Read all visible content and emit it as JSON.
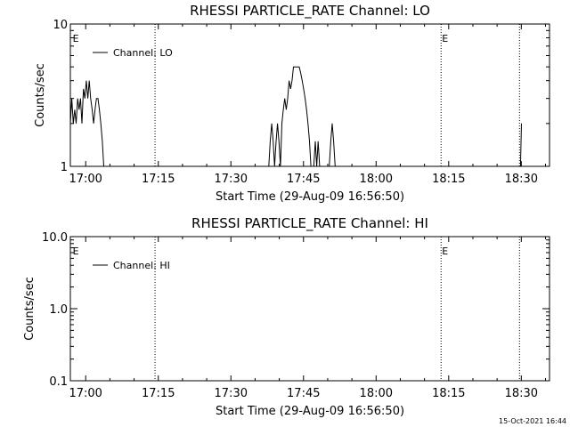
{
  "footer": {
    "timestamp": "15-Oct-2021 16:44"
  },
  "chart_data": [
    {
      "type": "line",
      "title": "RHESSI PARTICLE_RATE Channel: LO",
      "xlabel": "Start Time (29-Aug-09 16:56:50)",
      "ylabel": "Counts/sec",
      "xscale": "time (minutes after 16:56:50)",
      "xlim": [
        0,
        99
      ],
      "yscale": "log",
      "ylim": [
        1,
        10
      ],
      "x_ticks": [
        {
          "v": 3.17,
          "label": "17:00"
        },
        {
          "v": 18.17,
          "label": "17:15"
        },
        {
          "v": 33.17,
          "label": "17:30"
        },
        {
          "v": 48.17,
          "label": "17:45"
        },
        {
          "v": 63.17,
          "label": "18:00"
        },
        {
          "v": 78.17,
          "label": "18:15"
        },
        {
          "v": 93.17,
          "label": "18:30"
        }
      ],
      "y_ticks": [
        {
          "v": 1,
          "label": "1"
        },
        {
          "v": 10,
          "label": "10"
        }
      ],
      "legend": {
        "label": "Channel: LO",
        "placement": "top-left"
      },
      "markers": [
        {
          "x": 0.3,
          "label": "E"
        },
        {
          "x": 76.6,
          "label": "E"
        }
      ],
      "vlines": [
        17.5,
        76.6,
        92.8
      ],
      "series": [
        {
          "name": "Channel: LO",
          "x": [
            0.0,
            0.3,
            0.6,
            0.9,
            1.2,
            1.5,
            1.8,
            2.1,
            2.4,
            2.7,
            3.0,
            3.3,
            3.6,
            3.9,
            4.2,
            4.5,
            4.8,
            5.1,
            5.4,
            5.7,
            6.0,
            6.3,
            6.6,
            6.9,
            7.2,
            7.5,
            7.8,
            8.1,
            41.0,
            41.3,
            41.6,
            41.9,
            42.2,
            42.5,
            42.8,
            43.1,
            43.4,
            43.7,
            44.0,
            44.3,
            44.6,
            44.9,
            45.2,
            45.5,
            45.8,
            46.1,
            46.4,
            46.7,
            47.0,
            47.3,
            47.6,
            47.9,
            48.2,
            48.5,
            48.8,
            49.1,
            49.4,
            49.7,
            50.0,
            50.3,
            50.6,
            50.9,
            51.2,
            51.5,
            51.8,
            53.5,
            53.8,
            54.1,
            54.4,
            54.7,
            93.0,
            93.2
          ],
          "y": [
            2,
            3,
            2,
            2.5,
            2,
            3,
            2.5,
            3,
            2,
            3.5,
            3,
            4,
            3,
            4,
            3,
            2.5,
            2,
            2.5,
            3,
            3,
            2.5,
            2,
            1.5,
            1.0,
            1.0,
            1.0,
            1.0,
            1.0,
            1.0,
            1.5,
            2,
            1.5,
            1.0,
            1.5,
            2,
            1.5,
            1.0,
            2,
            2.5,
            3,
            2.5,
            3,
            4,
            3.5,
            4,
            5,
            5,
            5,
            5,
            5,
            4.5,
            4,
            3.5,
            3,
            2.5,
            2,
            1.5,
            1.0,
            1.0,
            1.0,
            1.5,
            1.0,
            1.5,
            1.0,
            1.0,
            1.0,
            1.5,
            2,
            1.5,
            1.0,
            1.0,
            2
          ]
        }
      ]
    },
    {
      "type": "line",
      "title": "RHESSI PARTICLE_RATE Channel: HI",
      "xlabel": "Start Time (29-Aug-09 16:56:50)",
      "ylabel": "Counts/sec",
      "xscale": "time (minutes after 16:56:50)",
      "xlim": [
        0,
        99
      ],
      "yscale": "log",
      "ylim": [
        0.1,
        10
      ],
      "x_ticks": [
        {
          "v": 3.17,
          "label": "17:00"
        },
        {
          "v": 18.17,
          "label": "17:15"
        },
        {
          "v": 33.17,
          "label": "17:30"
        },
        {
          "v": 48.17,
          "label": "17:45"
        },
        {
          "v": 63.17,
          "label": "18:00"
        },
        {
          "v": 78.17,
          "label": "18:15"
        },
        {
          "v": 93.17,
          "label": "18:30"
        }
      ],
      "y_ticks": [
        {
          "v": 0.1,
          "label": "0.1"
        },
        {
          "v": 1,
          "label": "1.0"
        },
        {
          "v": 10,
          "label": "10.0"
        }
      ],
      "legend": {
        "label": "Channel: HI",
        "placement": "top-left"
      },
      "markers": [
        {
          "x": 0.3,
          "label": "E"
        },
        {
          "x": 76.6,
          "label": "E"
        }
      ],
      "vlines": [
        17.5,
        76.6,
        92.8
      ],
      "series": [
        {
          "name": "Channel: HI",
          "x": [],
          "y": []
        }
      ]
    }
  ]
}
